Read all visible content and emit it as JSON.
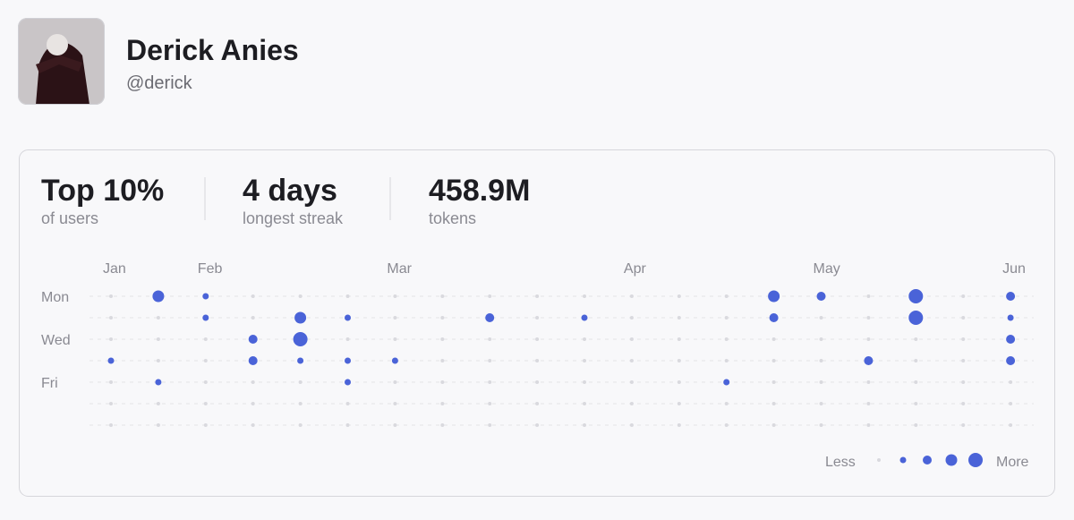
{
  "profile": {
    "name": "Derick Anies",
    "handle": "@derick"
  },
  "stats": [
    {
      "value": "Top 10%",
      "label": "of users"
    },
    {
      "value": "4 days",
      "label": "longest streak"
    },
    {
      "value": "458.9M",
      "label": "tokens"
    }
  ],
  "activity": {
    "month_labels": [
      "Jan",
      null,
      "Feb",
      null,
      null,
      null,
      "Mar",
      null,
      null,
      null,
      null,
      "Apr",
      null,
      null,
      null,
      "May",
      null,
      null,
      null,
      "Jun"
    ],
    "day_labels": [
      "Mon",
      null,
      "Wed",
      null,
      "Fri",
      null,
      null
    ],
    "levels": [
      [
        0,
        3,
        1,
        0,
        0,
        0,
        0,
        0,
        0,
        0,
        0,
        0,
        0,
        0,
        3,
        2,
        0,
        4,
        0,
        2
      ],
      [
        0,
        0,
        1,
        0,
        3,
        1,
        0,
        0,
        2,
        0,
        1,
        0,
        0,
        0,
        2,
        0,
        0,
        4,
        0,
        1
      ],
      [
        0,
        0,
        0,
        2,
        4,
        0,
        0,
        0,
        0,
        0,
        0,
        0,
        0,
        0,
        0,
        0,
        0,
        0,
        0,
        2
      ],
      [
        1,
        0,
        0,
        2,
        1,
        1,
        1,
        0,
        0,
        0,
        0,
        0,
        0,
        0,
        0,
        0,
        2,
        0,
        0,
        2
      ],
      [
        0,
        1,
        0,
        0,
        0,
        1,
        0,
        0,
        0,
        0,
        0,
        0,
        0,
        1,
        0,
        0,
        0,
        0,
        0,
        0
      ],
      [
        0,
        0,
        0,
        0,
        0,
        0,
        0,
        0,
        0,
        0,
        0,
        0,
        0,
        0,
        0,
        0,
        0,
        0,
        0,
        0
      ],
      [
        0,
        0,
        0,
        0,
        0,
        0,
        0,
        0,
        0,
        0,
        0,
        0,
        0,
        0,
        0,
        0,
        0,
        0,
        0,
        0
      ]
    ],
    "color": "#4a63d8",
    "empty_color": "#d9d9de",
    "legend": {
      "less": "Less",
      "more": "More",
      "levels": [
        0,
        1,
        2,
        3,
        4
      ]
    }
  }
}
